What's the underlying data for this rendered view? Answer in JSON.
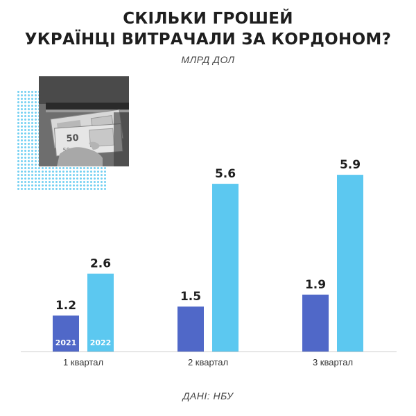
{
  "title_lines": [
    "СКІЛЬКИ ГРОШЕЙ",
    "УКРАЇНЦІ ВИТРАЧАЛИ ЗА КОРДОНОМ?"
  ],
  "unit": "МЛРД ДОЛ",
  "source": "ДАНІ: НБУ",
  "colors": {
    "series_2021": "#5068c8",
    "series_2022": "#5cc8f0",
    "text": "#1e1e1e",
    "axis": "#cccccc"
  },
  "photo": {
    "icon": "euro-banknotes-photo",
    "banknote_value": "50"
  },
  "chart_data": {
    "type": "bar",
    "categories": [
      "1 квартал",
      "2 квартал",
      "3 квартал"
    ],
    "series": [
      {
        "name": "2021",
        "values": [
          1.2,
          1.5,
          1.9
        ]
      },
      {
        "name": "2022",
        "values": [
          2.6,
          5.6,
          5.9
        ]
      }
    ],
    "ylim": [
      0,
      6.6
    ],
    "grid": false,
    "legend_placement": "inside-first-bars"
  }
}
